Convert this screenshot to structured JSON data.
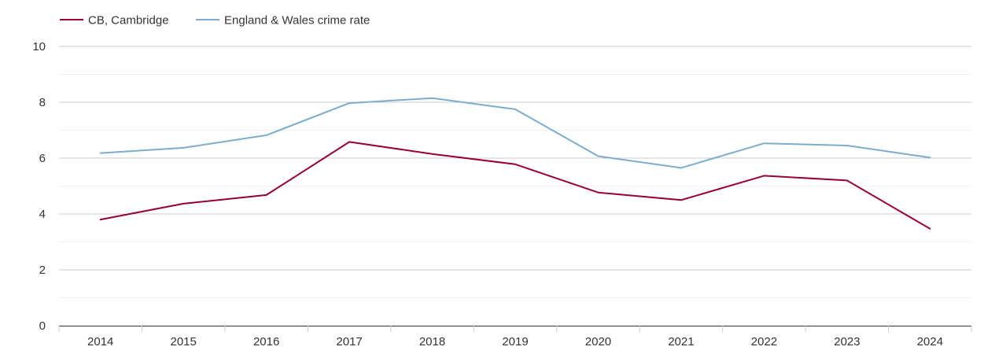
{
  "chart_data": {
    "type": "line",
    "title": "",
    "xlabel": "",
    "ylabel": "",
    "categories": [
      "2014",
      "2015",
      "2016",
      "2017",
      "2018",
      "2019",
      "2020",
      "2021",
      "2022",
      "2023",
      "2024"
    ],
    "ylim": [
      0,
      10
    ],
    "yticks": [
      "0",
      "2",
      "4",
      "6",
      "8",
      "10"
    ],
    "grid": true,
    "legend_position": "top-left",
    "series": [
      {
        "name": "CB, Cambridge",
        "color": "#99002f",
        "values": [
          3.8,
          4.37,
          4.68,
          6.58,
          6.15,
          5.78,
          4.77,
          4.5,
          5.37,
          5.2,
          3.47
        ]
      },
      {
        "name": "England & Wales crime rate",
        "color": "#7aadcf",
        "values": [
          6.18,
          6.37,
          6.82,
          7.97,
          8.15,
          7.75,
          6.07,
          5.65,
          6.53,
          6.45,
          6.02
        ]
      }
    ]
  }
}
